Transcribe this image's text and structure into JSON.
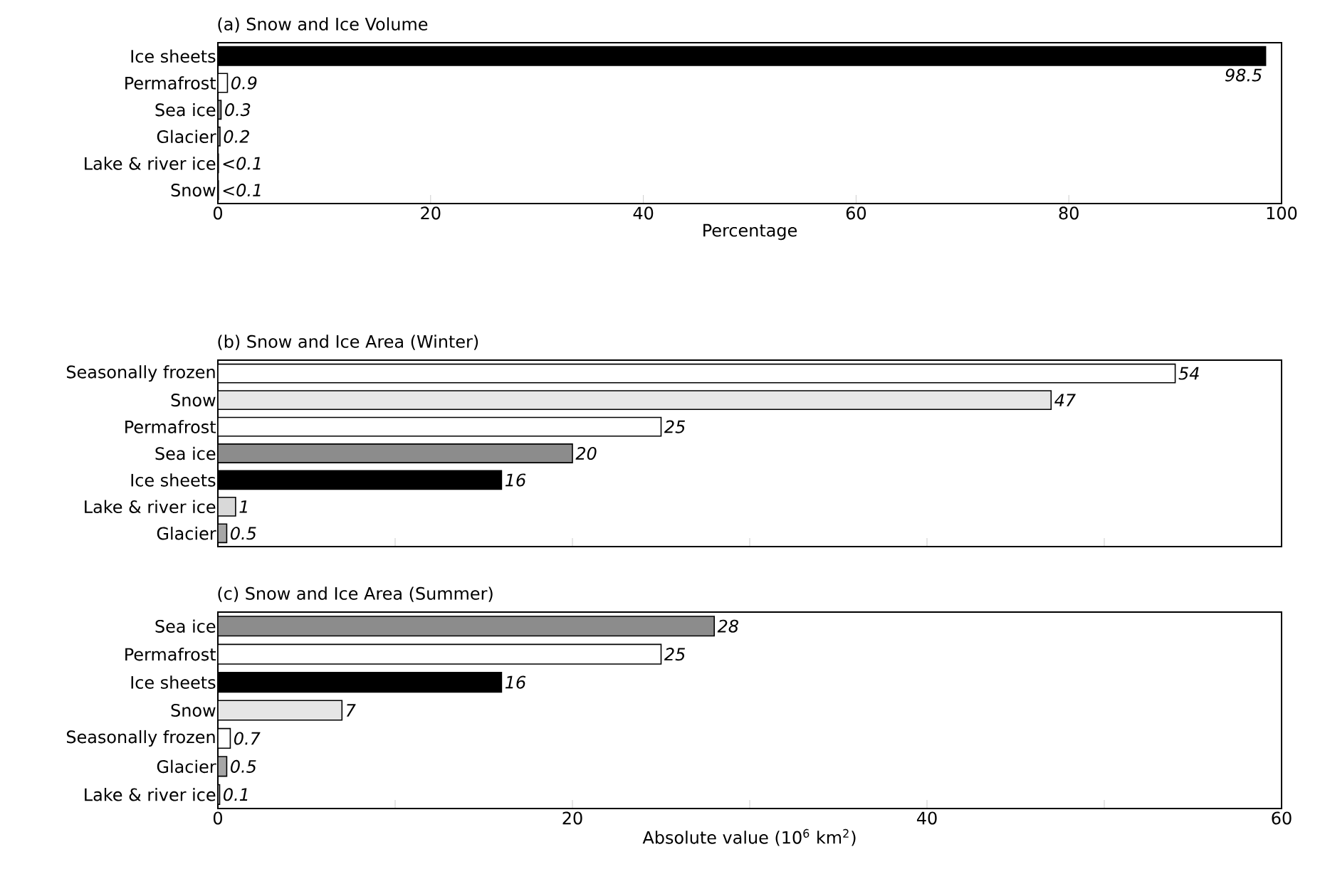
{
  "chart_data": [
    {
      "type": "bar",
      "orientation": "horizontal",
      "title": "(a) Snow and Ice Volume",
      "xlabel": "Percentage",
      "categories": [
        "Ice sheets",
        "Permafrost",
        "Sea ice",
        "Glacier",
        "Lake & river ice",
        "Snow"
      ],
      "values": [
        98.5,
        0.9,
        0.3,
        0.2,
        0.05,
        0.05
      ],
      "value_labels": [
        "98.5",
        "0.9",
        "0.3",
        "0.2",
        "<0.1",
        "<0.1"
      ],
      "colors": [
        "#000000",
        "#ffffff",
        "#8c8c8c",
        "#a6a6a6",
        "#d9d9d9",
        "#e6e6e6"
      ],
      "xlim": [
        0,
        100
      ],
      "xticks": [
        0,
        20,
        40,
        60,
        80,
        100
      ]
    },
    {
      "type": "bar",
      "orientation": "horizontal",
      "title": "(b) Snow and Ice Area (Winter)",
      "categories": [
        "Seasonally frozen",
        "Snow",
        "Permafrost",
        "Sea ice",
        "Ice sheets",
        "Lake & river ice",
        "Glacier"
      ],
      "values": [
        54,
        47,
        25,
        20,
        16,
        1,
        0.5
      ],
      "data_labels": true,
      "colors": [
        "#ffffff",
        "#e6e6e6",
        "#ffffff",
        "#8c8c8c",
        "#000000",
        "#d9d9d9",
        "#a6a6a6"
      ],
      "xlim": [
        0,
        60
      ],
      "xticks": [
        {
          "value": 10,
          "label": null
        },
        {
          "value": 20,
          "label": null
        },
        {
          "value": 30,
          "label": null
        },
        {
          "value": 40,
          "label": null
        },
        {
          "value": 50,
          "label": null
        }
      ],
      "tick_labels": "y"
    },
    {
      "type": "bar",
      "orientation": "horizontal",
      "title": "(c) Snow and Ice Area (Summer)",
      "xlabel": "Absolute value (10$^{6}$ km$^{2}$)",
      "categories": [
        "Sea ice",
        "Permafrost",
        "Ice sheets",
        "Snow",
        "Seasonally frozen",
        "Glacier",
        "Lake & river ice"
      ],
      "values": [
        28,
        25,
        16,
        7,
        0.7,
        0.5,
        0.1
      ],
      "data_labels": true,
      "colors": [
        "#8c8c8c",
        "#ffffff",
        "#000000",
        "#e6e6e6",
        "#ffffff",
        "#a6a6a6",
        "#d9d9d9"
      ],
      "xlim": [
        0,
        60
      ],
      "xticks": [
        0,
        {
          "value": 10,
          "label": null
        },
        20,
        {
          "value": 30,
          "label": null
        },
        40,
        {
          "value": 50,
          "label": null
        },
        60
      ]
    }
  ]
}
